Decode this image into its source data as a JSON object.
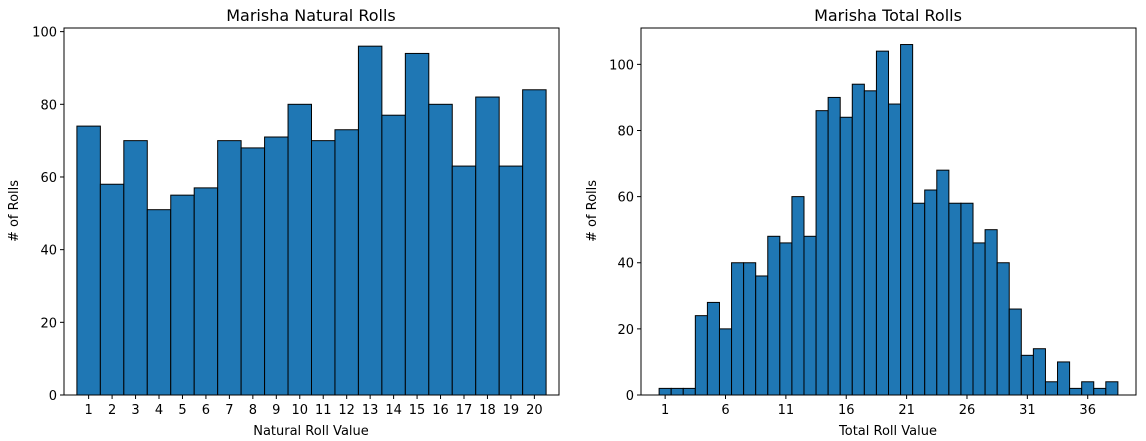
{
  "chart_data": [
    {
      "type": "bar",
      "title": "Marisha Natural Rolls",
      "xlabel": "Natural Roll Value",
      "ylabel": "# of Rolls",
      "ylim": [
        0,
        101
      ],
      "xlim": [
        -0.05,
        21.05
      ],
      "bar_color": "#1f77b4",
      "edge_color": "#000000",
      "x": [
        1,
        2,
        3,
        4,
        5,
        6,
        7,
        8,
        9,
        10,
        11,
        12,
        13,
        14,
        15,
        16,
        17,
        18,
        19,
        20
      ],
      "values": [
        74,
        58,
        70,
        51,
        55,
        57,
        70,
        68,
        71,
        80,
        70,
        73,
        96,
        77,
        94,
        80,
        63,
        82,
        63,
        84
      ],
      "xticks": [
        "1",
        "2",
        "3",
        "4",
        "5",
        "6",
        "7",
        "8",
        "9",
        "10",
        "11",
        "12",
        "13",
        "14",
        "15",
        "16",
        "17",
        "18",
        "19",
        "20"
      ],
      "yticks": [
        0,
        20,
        40,
        60,
        80,
        100
      ],
      "grid": false
    },
    {
      "type": "bar",
      "title": "Marisha Total Rolls",
      "xlabel": "Total Roll Value",
      "ylabel": "# of Rolls",
      "ylim": [
        0,
        111
      ],
      "xlim": [
        -1,
        40
      ],
      "bar_color": "#1f77b4",
      "edge_color": "#000000",
      "x": [
        1,
        2,
        3,
        4,
        5,
        6,
        7,
        8,
        9,
        10,
        11,
        12,
        13,
        14,
        15,
        16,
        17,
        18,
        19,
        20,
        21,
        22,
        23,
        24,
        25,
        26,
        27,
        28,
        29,
        30,
        31,
        32,
        33,
        34,
        35,
        36,
        37,
        38
      ],
      "values": [
        2,
        2,
        2,
        24,
        28,
        20,
        40,
        40,
        36,
        48,
        46,
        60,
        48,
        86,
        90,
        84,
        94,
        92,
        104,
        88,
        106,
        58,
        62,
        68,
        58,
        58,
        46,
        50,
        40,
        26,
        12,
        14,
        4,
        10,
        2,
        4,
        2,
        4
      ],
      "xticks": [
        "1",
        "6",
        "11",
        "16",
        "21",
        "26",
        "31",
        "36"
      ],
      "xtick_values": [
        1,
        6,
        11,
        16,
        21,
        26,
        31,
        36
      ],
      "yticks": [
        0,
        20,
        40,
        60,
        80,
        100
      ],
      "grid": false
    }
  ]
}
